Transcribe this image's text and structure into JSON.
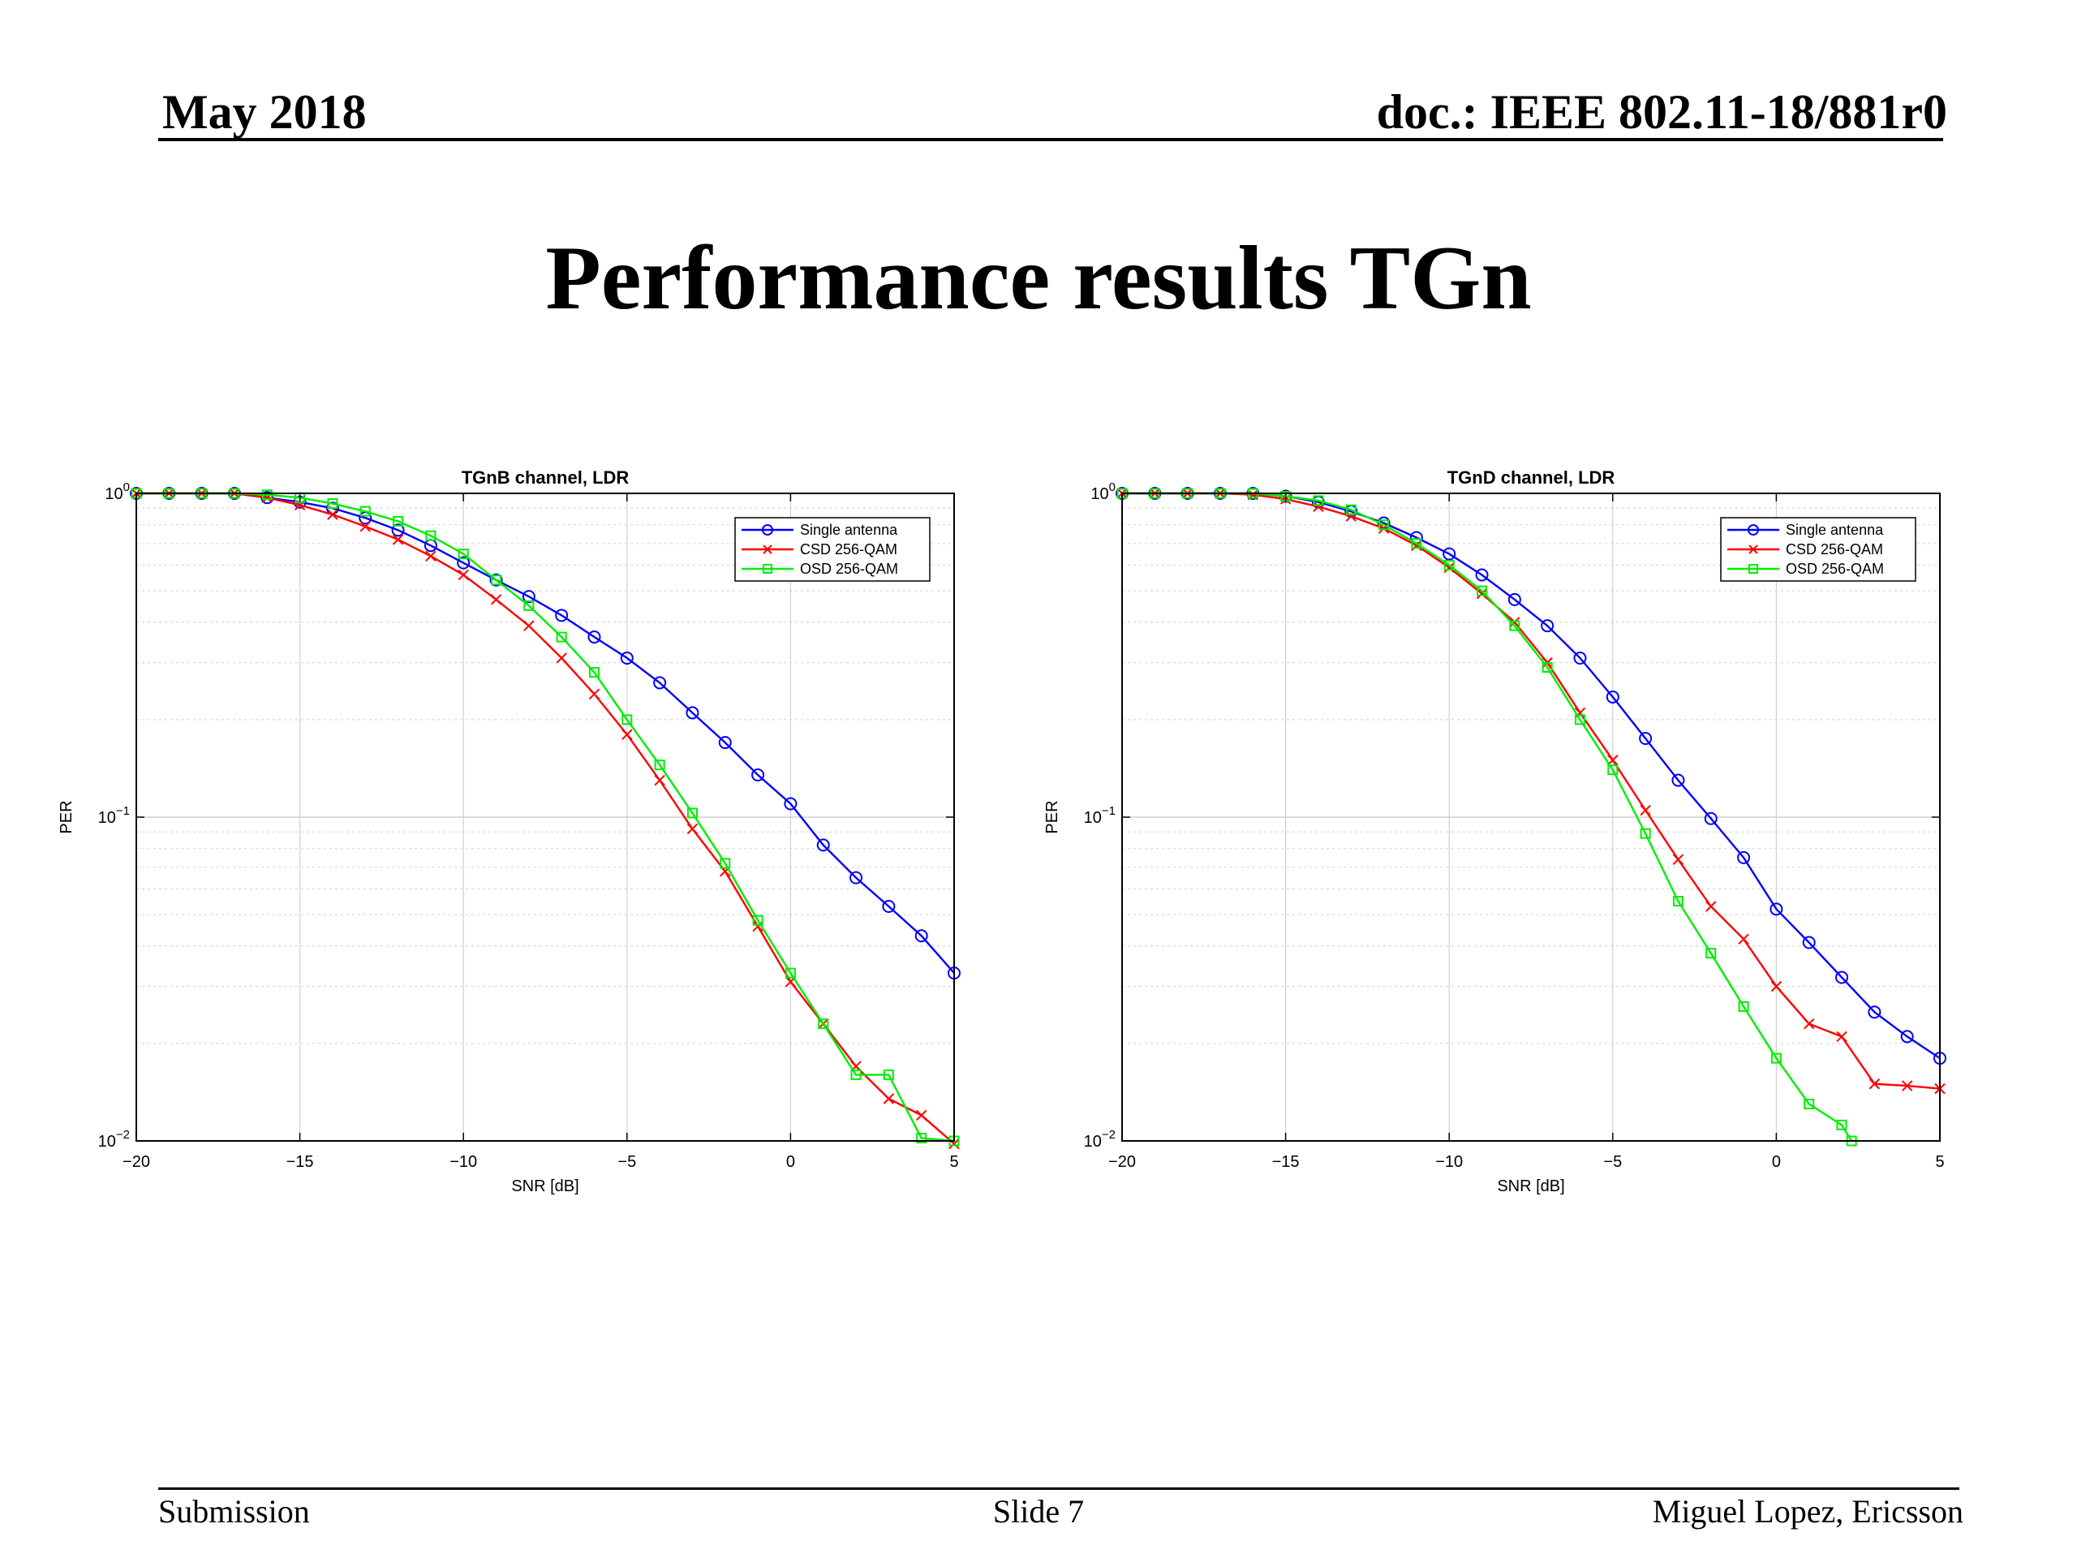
{
  "header": {
    "date": "May 2018",
    "doc_id": "doc.: IEEE 802.11-18/881r0"
  },
  "slide": {
    "title": "Performance results TGn"
  },
  "footer": {
    "left": "Submission",
    "center": "Slide 7",
    "right": "Miguel Lopez, Ericsson"
  },
  "colors": {
    "single": "#0000ff",
    "csd": "#ff0000",
    "osd": "#00ee00"
  },
  "chart_data": [
    {
      "type": "line",
      "title": "TGnB channel, LDR",
      "xlabel": "SNR [dB]",
      "ylabel": "PER",
      "xlim": [
        -20,
        5
      ],
      "ylim": [
        0.01,
        1
      ],
      "yscale": "log",
      "grid": true,
      "legend": "top-right",
      "x_ticks": [
        "−20",
        "−15",
        "−10",
        "−5",
        "0",
        "5"
      ],
      "y_ticks": [
        "10",
        "10",
        "10"
      ],
      "y_tick_exponents": [
        "−2",
        "−1",
        "0"
      ],
      "series": [
        {
          "name": "Single antenna",
          "color": "#0000ff",
          "marker": "circle",
          "x": [
            -20,
            -19,
            -18,
            -17,
            -16,
            -15,
            -14,
            -13,
            -12,
            -11,
            -10,
            -9,
            -8,
            -7,
            -6,
            -5,
            -4,
            -3,
            -2,
            -1,
            0,
            1,
            2,
            3,
            4,
            5
          ],
          "y": [
            1,
            1,
            1,
            1,
            0.97,
            0.94,
            0.9,
            0.84,
            0.77,
            0.69,
            0.61,
            0.54,
            0.48,
            0.42,
            0.36,
            0.31,
            0.26,
            0.21,
            0.17,
            0.135,
            0.11,
            0.082,
            0.065,
            0.053,
            0.043,
            0.033
          ]
        },
        {
          "name": "CSD 256-QAM",
          "color": "#ff0000",
          "marker": "x",
          "x": [
            -20,
            -19,
            -18,
            -17,
            -16,
            -15,
            -14,
            -13,
            -12,
            -11,
            -10,
            -9,
            -8,
            -7,
            -6,
            -5,
            -4,
            -3,
            -2,
            -1,
            0,
            1,
            2,
            3,
            4,
            5
          ],
          "y": [
            1,
            1,
            1,
            1,
            0.97,
            0.92,
            0.86,
            0.79,
            0.72,
            0.64,
            0.56,
            0.47,
            0.39,
            0.31,
            0.24,
            0.18,
            0.13,
            0.092,
            0.068,
            0.046,
            0.031,
            0.023,
            0.017,
            0.0135,
            0.012,
            0.0098
          ]
        },
        {
          "name": "OSD 256-QAM",
          "color": "#00ee00",
          "marker": "square",
          "x": [
            -20,
            -19,
            -18,
            -17,
            -16,
            -15,
            -14,
            -13,
            -12,
            -11,
            -10,
            -9,
            -8,
            -7,
            -6,
            -5,
            -4,
            -3,
            -2,
            -1,
            0,
            1,
            2,
            3,
            4,
            5
          ],
          "y": [
            1,
            1,
            1,
            1,
            0.99,
            0.97,
            0.93,
            0.88,
            0.82,
            0.74,
            0.65,
            0.54,
            0.45,
            0.36,
            0.28,
            0.2,
            0.145,
            0.103,
            0.072,
            0.048,
            0.033,
            0.023,
            0.016,
            0.016,
            0.0102,
            0.01
          ]
        }
      ]
    },
    {
      "type": "line",
      "title": "TGnD channel, LDR",
      "xlabel": "SNR [dB]",
      "ylabel": "PER",
      "xlim": [
        -20,
        5
      ],
      "ylim": [
        0.01,
        1
      ],
      "yscale": "log",
      "grid": true,
      "legend": "top-right",
      "x_ticks": [
        "−20",
        "−15",
        "−10",
        "−5",
        "0",
        "5"
      ],
      "y_ticks": [
        "10",
        "10",
        "10"
      ],
      "y_tick_exponents": [
        "−2",
        "−1",
        "0"
      ],
      "series": [
        {
          "name": "Single antenna",
          "color": "#0000ff",
          "marker": "circle",
          "x": [
            -20,
            -19,
            -18,
            -17,
            -16,
            -15,
            -14,
            -13,
            -12,
            -11,
            -10,
            -9,
            -8,
            -7,
            -6,
            -5,
            -4,
            -3,
            -2,
            -1,
            0,
            1,
            2,
            3,
            4,
            5
          ],
          "y": [
            1,
            1,
            1,
            1,
            1,
            0.98,
            0.94,
            0.88,
            0.81,
            0.73,
            0.65,
            0.56,
            0.47,
            0.39,
            0.31,
            0.235,
            0.175,
            0.13,
            0.099,
            0.075,
            0.052,
            0.041,
            0.032,
            0.025,
            0.021,
            0.018
          ]
        },
        {
          "name": "CSD 256-QAM",
          "color": "#ff0000",
          "marker": "x",
          "x": [
            -20,
            -19,
            -18,
            -17,
            -16,
            -15,
            -14,
            -13,
            -12,
            -11,
            -10,
            -9,
            -8,
            -7,
            -6,
            -5,
            -4,
            -3,
            -2,
            -1,
            0,
            1,
            2,
            3,
            4,
            5
          ],
          "y": [
            1,
            1,
            1,
            1,
            0.99,
            0.96,
            0.91,
            0.85,
            0.78,
            0.69,
            0.59,
            0.49,
            0.4,
            0.3,
            0.21,
            0.15,
            0.105,
            0.074,
            0.053,
            0.042,
            0.03,
            0.023,
            0.021,
            0.015,
            0.0148,
            0.0145
          ]
        },
        {
          "name": "OSD 256-QAM",
          "color": "#00ee00",
          "marker": "square",
          "x": [
            -20,
            -19,
            -18,
            -17,
            -16,
            -15,
            -14,
            -13,
            -12,
            -11,
            -10,
            -9,
            -8,
            -7,
            -6,
            -5,
            -4,
            -3,
            -2,
            -1,
            0,
            1,
            2,
            2.3
          ],
          "y": [
            1,
            1,
            1,
            1,
            1,
            0.98,
            0.95,
            0.89,
            0.8,
            0.7,
            0.6,
            0.5,
            0.39,
            0.29,
            0.2,
            0.14,
            0.089,
            0.055,
            0.038,
            0.026,
            0.018,
            0.013,
            0.0112,
            0.01
          ]
        }
      ]
    }
  ]
}
